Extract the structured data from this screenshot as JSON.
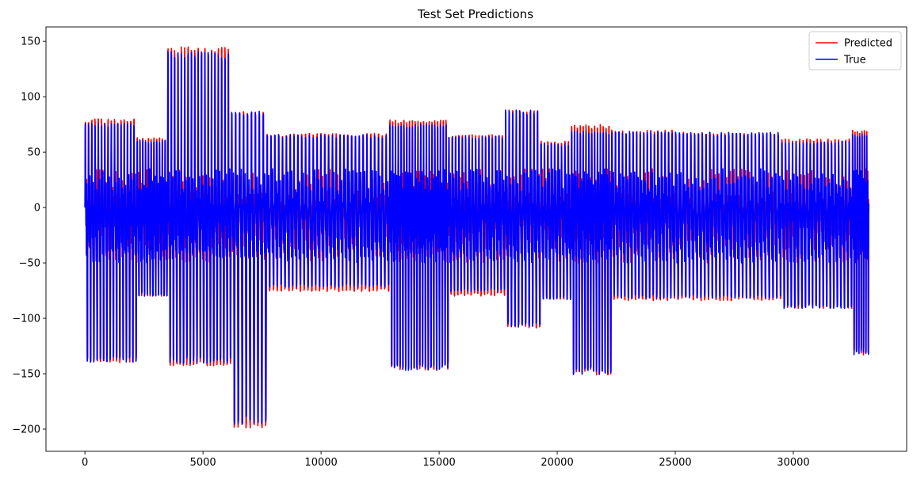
{
  "chart_data": {
    "type": "line",
    "title": "Test Set Predictions",
    "xlabel": "",
    "ylabel": "",
    "xlim": [
      -1650,
      34800
    ],
    "ylim": [
      -220,
      163
    ],
    "xticks": [
      0,
      5000,
      10000,
      15000,
      20000,
      25000,
      30000
    ],
    "yticks": [
      -200,
      -150,
      -100,
      -50,
      0,
      50,
      100,
      150
    ],
    "grid": false,
    "legend": {
      "placement": "top-right",
      "entries": [
        "Predicted",
        "True"
      ]
    },
    "series": [
      {
        "name": "Predicted",
        "color": "#ff0000"
      },
      {
        "name": "True",
        "color": "#0000ff"
      }
    ],
    "n_points": 33200,
    "segments": [
      {
        "x_start": 0,
        "x_end": 2200,
        "pred_max": 80,
        "pred_min": -140,
        "true_max": 76,
        "true_min": -140,
        "cycles": 16
      },
      {
        "x_start": 2200,
        "x_end": 3500,
        "pred_max": 63,
        "pred_min": -80,
        "true_max": 61,
        "true_min": -80,
        "cycles": 11
      },
      {
        "x_start": 3500,
        "x_end": 6200,
        "pred_max": 145,
        "pred_min": -143,
        "true_max": 141,
        "true_min": -141,
        "cycles": 19
      },
      {
        "x_start": 6200,
        "x_end": 7700,
        "pred_max": 87,
        "pred_min": -199,
        "true_max": 87,
        "true_min": -196,
        "cycles": 9
      },
      {
        "x_start": 7700,
        "x_end": 12900,
        "pred_max": 67,
        "pred_min": -76,
        "true_max": 66,
        "true_min": -72,
        "cycles": 32
      },
      {
        "x_start": 12900,
        "x_end": 15400,
        "pred_max": 79,
        "pred_min": -147,
        "true_max": 75,
        "true_min": -147,
        "cycles": 21
      },
      {
        "x_start": 15400,
        "x_end": 17800,
        "pred_max": 66,
        "pred_min": -80,
        "true_max": 65,
        "true_min": -76,
        "cycles": 17
      },
      {
        "x_start": 17800,
        "x_end": 19300,
        "pred_max": 88,
        "pred_min": -109,
        "true_max": 88,
        "true_min": -108,
        "cycles": 10
      },
      {
        "x_start": 19300,
        "x_end": 20600,
        "pred_max": 60,
        "pred_min": -83,
        "true_max": 58,
        "true_min": -83,
        "cycles": 9
      },
      {
        "x_start": 20600,
        "x_end": 22300,
        "pred_max": 75,
        "pred_min": -151,
        "true_max": 69,
        "true_min": -151,
        "cycles": 14
      },
      {
        "x_start": 22300,
        "x_end": 25000,
        "pred_max": 70,
        "pred_min": -84,
        "true_max": 69,
        "true_min": -82,
        "cycles": 18
      },
      {
        "x_start": 25000,
        "x_end": 29500,
        "pred_max": 68,
        "pred_min": -84,
        "true_max": 68,
        "true_min": -82,
        "cycles": 28
      },
      {
        "x_start": 29500,
        "x_end": 32500,
        "pred_max": 62,
        "pred_min": -91,
        "true_max": 60,
        "true_min": -91,
        "cycles": 20
      },
      {
        "x_start": 32500,
        "x_end": 33200,
        "pred_max": 70,
        "pred_min": -133,
        "true_max": 67,
        "true_min": -133,
        "cycles": 7
      }
    ]
  }
}
